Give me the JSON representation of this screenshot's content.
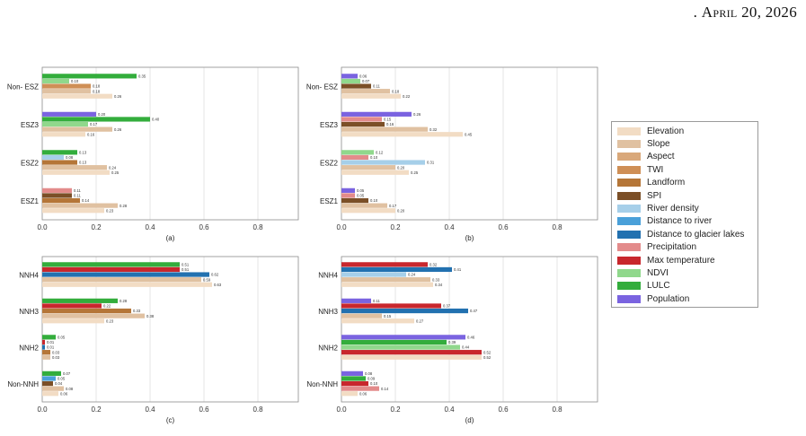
{
  "header": {
    "prefix": ". ",
    "date": "April 20, 2026"
  },
  "legend_title": "",
  "chart_data": [
    {
      "type": "bar",
      "panel": "(a)",
      "orientation": "horizontal",
      "categories": [
        "Non- ESZ",
        "ESZ3",
        "ESZ2",
        "ESZ1"
      ],
      "xlim": [
        0,
        0.95
      ],
      "xticks": [
        "0.0",
        "0.2",
        "0.4",
        "0.6",
        "0.8"
      ],
      "grid": "vertical",
      "bars": [
        {
          "category": "Non- ESZ",
          "series": "LULC",
          "value": 0.35,
          "label": "0.35"
        },
        {
          "category": "Non- ESZ",
          "series": "NDVI",
          "value": 0.1,
          "label": "0.10"
        },
        {
          "category": "Non- ESZ",
          "series": "TWI",
          "value": 0.18,
          "label": "0.18"
        },
        {
          "category": "Non- ESZ",
          "series": "Slope",
          "value": 0.18,
          "label": "0.18"
        },
        {
          "category": "Non- ESZ",
          "series": "Elevation",
          "value": 0.26,
          "label": "0.26"
        },
        {
          "category": "ESZ3",
          "series": "Population",
          "value": 0.2,
          "label": "0.20"
        },
        {
          "category": "ESZ3",
          "series": "LULC",
          "value": 0.4,
          "label": "0.40"
        },
        {
          "category": "ESZ3",
          "series": "NDVI",
          "value": 0.17,
          "label": "0.17"
        },
        {
          "category": "ESZ3",
          "series": "Slope",
          "value": 0.26,
          "label": "0.26"
        },
        {
          "category": "ESZ3",
          "series": "Elevation",
          "value": 0.16,
          "label": "0.16"
        },
        {
          "category": "ESZ2",
          "series": "LULC",
          "value": 0.13,
          "label": "0.13"
        },
        {
          "category": "ESZ2",
          "series": "River density",
          "value": 0.08,
          "label": "0.08"
        },
        {
          "category": "ESZ2",
          "series": "Landform",
          "value": 0.13,
          "label": "0.13"
        },
        {
          "category": "ESZ2",
          "series": "Slope",
          "value": 0.24,
          "label": "0.24"
        },
        {
          "category": "ESZ2",
          "series": "Elevation",
          "value": 0.25,
          "label": "0.25"
        },
        {
          "category": "ESZ1",
          "series": "Precipitation",
          "value": 0.11,
          "label": "0.11"
        },
        {
          "category": "ESZ1",
          "series": "SPI",
          "value": 0.11,
          "label": "0.11"
        },
        {
          "category": "ESZ1",
          "series": "Landform",
          "value": 0.14,
          "label": "0.14"
        },
        {
          "category": "ESZ1",
          "series": "Slope",
          "value": 0.28,
          "label": "0.28"
        },
        {
          "category": "ESZ1",
          "series": "Elevation",
          "value": 0.23,
          "label": "0.23"
        }
      ]
    },
    {
      "type": "bar",
      "panel": "(b)",
      "orientation": "horizontal",
      "categories": [
        "Non- ESZ",
        "ESZ3",
        "ESZ2",
        "ESZ1"
      ],
      "xlim": [
        0,
        0.95
      ],
      "xticks": [
        "0.0",
        "0.2",
        "0.4",
        "0.6",
        "0.8"
      ],
      "grid": "vertical",
      "bars": [
        {
          "category": "Non- ESZ",
          "series": "Population",
          "value": 0.06,
          "label": "0.06"
        },
        {
          "category": "Non- ESZ",
          "series": "NDVI",
          "value": 0.07,
          "label": "0.07"
        },
        {
          "category": "Non- ESZ",
          "series": "SPI",
          "value": 0.11,
          "label": "0.11"
        },
        {
          "category": "Non- ESZ",
          "series": "Slope",
          "value": 0.18,
          "label": "0.18"
        },
        {
          "category": "Non- ESZ",
          "series": "Elevation",
          "value": 0.22,
          "label": "0.22"
        },
        {
          "category": "ESZ3",
          "series": "Population",
          "value": 0.26,
          "label": "0.26"
        },
        {
          "category": "ESZ3",
          "series": "Precipitation",
          "value": 0.15,
          "label": "0.15"
        },
        {
          "category": "ESZ3",
          "series": "SPI",
          "value": 0.16,
          "label": "0.16"
        },
        {
          "category": "ESZ3",
          "series": "Slope",
          "value": 0.32,
          "label": "0.32"
        },
        {
          "category": "ESZ3",
          "series": "Elevation",
          "value": 0.45,
          "label": "0.45"
        },
        {
          "category": "ESZ2",
          "series": "NDVI",
          "value": 0.12,
          "label": "0.12"
        },
        {
          "category": "ESZ2",
          "series": "Precipitation",
          "value": 0.1,
          "label": "0.10"
        },
        {
          "category": "ESZ2",
          "series": "River density",
          "value": 0.31,
          "label": "0.31"
        },
        {
          "category": "ESZ2",
          "series": "Slope",
          "value": 0.2,
          "label": "0.20"
        },
        {
          "category": "ESZ2",
          "series": "Elevation",
          "value": 0.25,
          "label": "0.25"
        },
        {
          "category": "ESZ1",
          "series": "Population",
          "value": 0.05,
          "label": "0.05"
        },
        {
          "category": "ESZ1",
          "series": "Precipitation",
          "value": 0.05,
          "label": "0.05"
        },
        {
          "category": "ESZ1",
          "series": "SPI",
          "value": 0.1,
          "label": "0.10"
        },
        {
          "category": "ESZ1",
          "series": "Slope",
          "value": 0.17,
          "label": "0.17"
        },
        {
          "category": "ESZ1",
          "series": "Elevation",
          "value": 0.2,
          "label": "0.20"
        }
      ]
    },
    {
      "type": "bar",
      "panel": "(c)",
      "orientation": "horizontal",
      "categories": [
        "NNH4",
        "NNH3",
        "NNH2",
        "Non-NNH"
      ],
      "xlim": [
        0,
        0.95
      ],
      "xticks": [
        "0.0",
        "0.2",
        "0.4",
        "0.6",
        "0.8"
      ],
      "grid": "vertical",
      "bars": [
        {
          "category": "NNH4",
          "series": "LULC",
          "value": 0.51,
          "label": "0.51"
        },
        {
          "category": "NNH4",
          "series": "Max temperature",
          "value": 0.51,
          "label": "0.51"
        },
        {
          "category": "NNH4",
          "series": "Distance to glacier lakes",
          "value": 0.62,
          "label": "0.62"
        },
        {
          "category": "NNH4",
          "series": "Slope",
          "value": 0.59,
          "label": "0.59"
        },
        {
          "category": "NNH4",
          "series": "Elevation",
          "value": 0.63,
          "label": "0.63"
        },
        {
          "category": "NNH3",
          "series": "LULC",
          "value": 0.28,
          "label": "0.28"
        },
        {
          "category": "NNH3",
          "series": "Max temperature",
          "value": 0.22,
          "label": "0.22"
        },
        {
          "category": "NNH3",
          "series": "Landform",
          "value": 0.33,
          "label": "0.33"
        },
        {
          "category": "NNH3",
          "series": "Slope",
          "value": 0.38,
          "label": "0.38"
        },
        {
          "category": "NNH3",
          "series": "Elevation",
          "value": 0.23,
          "label": "0.23"
        },
        {
          "category": "NNH2",
          "series": "LULC",
          "value": 0.05,
          "label": "0.05"
        },
        {
          "category": "NNH2",
          "series": "Max temperature",
          "value": 0.01,
          "label": "0.01"
        },
        {
          "category": "NNH2",
          "series": "Distance to glacier lakes",
          "value": 0.01,
          "label": "0.01"
        },
        {
          "category": "NNH2",
          "series": "Landform",
          "value": 0.03,
          "label": "0.03"
        },
        {
          "category": "NNH2",
          "series": "Slope",
          "value": 0.03,
          "label": "0.03"
        },
        {
          "category": "Non-NNH",
          "series": "LULC",
          "value": 0.07,
          "label": "0.07"
        },
        {
          "category": "Non-NNH",
          "series": "Distance to river",
          "value": 0.05,
          "label": "0.05"
        },
        {
          "category": "Non-NNH",
          "series": "SPI",
          "value": 0.04,
          "label": "0.04"
        },
        {
          "category": "Non-NNH",
          "series": "Slope",
          "value": 0.08,
          "label": "0.08"
        },
        {
          "category": "Non-NNH",
          "series": "Elevation",
          "value": 0.06,
          "label": "0.06"
        }
      ]
    },
    {
      "type": "bar",
      "panel": "(d)",
      "orientation": "horizontal",
      "categories": [
        "NNH4",
        "NNH3",
        "NNH2",
        "Non-NNH"
      ],
      "xlim": [
        0,
        0.95
      ],
      "xticks": [
        "0.0",
        "0.2",
        "0.4",
        "0.6",
        "0.8"
      ],
      "grid": "vertical",
      "bars": [
        {
          "category": "NNH4",
          "series": "Max temperature",
          "value": 0.32,
          "label": "0.32"
        },
        {
          "category": "NNH4",
          "series": "Distance to glacier lakes",
          "value": 0.41,
          "label": "0.41"
        },
        {
          "category": "NNH4",
          "series": "River density",
          "value": 0.24,
          "label": "0.24"
        },
        {
          "category": "NNH4",
          "series": "Slope",
          "value": 0.33,
          "label": "0.33"
        },
        {
          "category": "NNH4",
          "series": "Elevation",
          "value": 0.34,
          "label": "0.34"
        },
        {
          "category": "NNH3",
          "series": "Population",
          "value": 0.11,
          "label": "0.11"
        },
        {
          "category": "NNH3",
          "series": "Max temperature",
          "value": 0.37,
          "label": "0.37"
        },
        {
          "category": "NNH3",
          "series": "Distance to glacier lakes",
          "value": 0.47,
          "label": "0.47"
        },
        {
          "category": "NNH3",
          "series": "Slope",
          "value": 0.15,
          "label": "0.15"
        },
        {
          "category": "NNH3",
          "series": "Elevation",
          "value": 0.27,
          "label": "0.27"
        },
        {
          "category": "NNH2",
          "series": "Population",
          "value": 0.46,
          "label": "0.46"
        },
        {
          "category": "NNH2",
          "series": "LULC",
          "value": 0.39,
          "label": "0.39"
        },
        {
          "category": "NNH2",
          "series": "NDVI",
          "value": 0.44,
          "label": "0.44"
        },
        {
          "category": "NNH2",
          "series": "Max temperature",
          "value": 0.52,
          "label": "0.52"
        },
        {
          "category": "NNH2",
          "series": "Elevation",
          "value": 0.52,
          "label": "0.52"
        },
        {
          "category": "Non-NNH",
          "series": "Population",
          "value": 0.08,
          "label": "0.08"
        },
        {
          "category": "Non-NNH",
          "series": "LULC",
          "value": 0.09,
          "label": "0.09"
        },
        {
          "category": "Non-NNH",
          "series": "Max temperature",
          "value": 0.1,
          "label": "0.10"
        },
        {
          "category": "Non-NNH",
          "series": "Precipitation",
          "value": 0.14,
          "label": "0.14"
        },
        {
          "category": "Non-NNH",
          "series": "Elevation",
          "value": 0.06,
          "label": "0.06"
        }
      ]
    }
  ],
  "legend": [
    {
      "name": "Elevation",
      "color": "#f2dcc4"
    },
    {
      "name": "Slope",
      "color": "#e0c1a1"
    },
    {
      "name": "Aspect",
      "color": "#d9a87a"
    },
    {
      "name": "TWI",
      "color": "#cf8f56"
    },
    {
      "name": "Landform",
      "color": "#b57638"
    },
    {
      "name": "SPI",
      "color": "#7b4f27"
    },
    {
      "name": "River density",
      "color": "#a6cfe9"
    },
    {
      "name": "Distance to river",
      "color": "#4aa0d9"
    },
    {
      "name": "Distance to glacier lakes",
      "color": "#2271b0"
    },
    {
      "name": "Precipitation",
      "color": "#e38b8b"
    },
    {
      "name": "Max temperature",
      "color": "#c8272d"
    },
    {
      "name": "NDVI",
      "color": "#90d88c"
    },
    {
      "name": "LULC",
      "color": "#33ad3c"
    },
    {
      "name": "Population",
      "color": "#7a63e0"
    }
  ]
}
